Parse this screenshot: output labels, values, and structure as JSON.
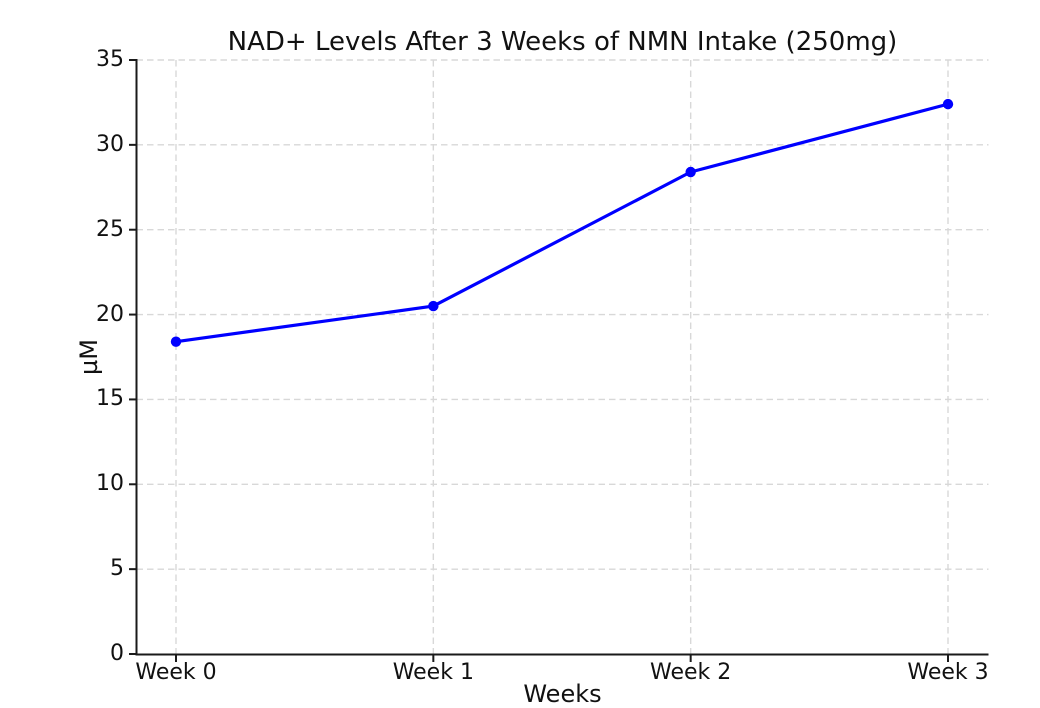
{
  "chart_data": {
    "type": "line",
    "title": "NAD+ Levels After 3 Weeks of NMN Intake (250mg)",
    "xlabel": "Weeks",
    "ylabel": "µM",
    "categories": [
      "Week 0",
      "Week 1",
      "Week 2",
      "Week 3"
    ],
    "values": [
      18.4,
      20.5,
      28.4,
      32.4
    ],
    "ylim": [
      0,
      35
    ],
    "yticks": [
      0,
      5,
      10,
      15,
      20,
      25,
      30,
      35
    ],
    "grid": true,
    "grid_style": "dashed",
    "grid_color": "#d8d8d8",
    "line_color": "#0000ff",
    "marker": "circle",
    "axis_color": "#1a1a1a",
    "text_color": "#111111",
    "background": "#ffffff",
    "legend": "none"
  }
}
